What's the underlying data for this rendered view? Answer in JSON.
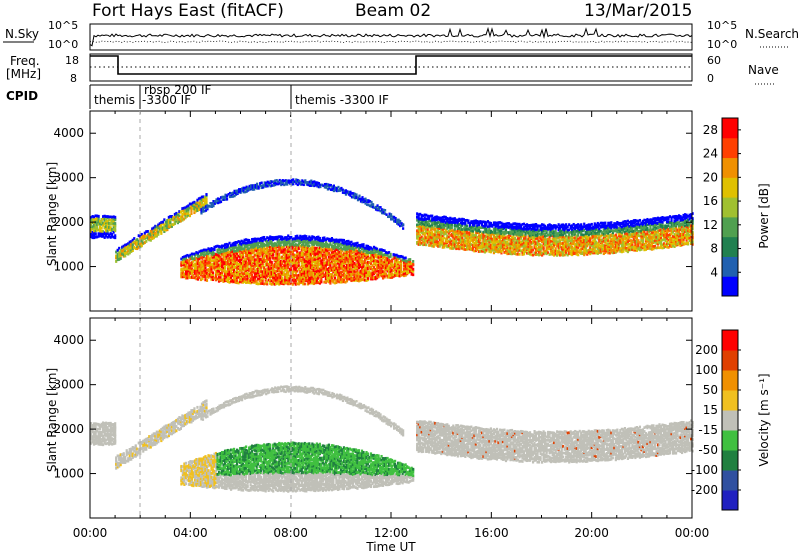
{
  "header": {
    "title": "Fort Hays East (fitACF)",
    "beam": "Beam 02",
    "date": "13/Mar/2015"
  },
  "labels": {
    "nsky": "N.Sky",
    "freq_line1": "Freq.",
    "freq_line2": "[MHz]",
    "cpid": "CPID",
    "nsearch": "N.Search",
    "nave": "Nave",
    "slant_range": "Slant Range [km]",
    "time_axis": "Time UT",
    "power_label": "Power [dB]",
    "velocity_label": "Velocity [m s⁻¹]"
  },
  "noise_panel": {
    "left_ticks": [
      "10^5",
      "10^0"
    ],
    "right_ticks": [
      "10^5",
      "10^0"
    ]
  },
  "freq_panel": {
    "left_ticks": [
      "18",
      "8"
    ],
    "right_ticks": [
      "60",
      "0"
    ]
  },
  "cpid_panel": {
    "segments": [
      {
        "start_hour": 0.0,
        "label": "themis"
      },
      {
        "start_hour": 1.9,
        "label": "rbsp 200 IF"
      },
      {
        "start_hour": 1.9,
        "label": "-3300 IF"
      },
      {
        "start_hour": 7.9,
        "label": "themis -3300 IF"
      }
    ]
  },
  "colors": {
    "power_scale": [
      "#0000ff",
      "#2060b0",
      "#208050",
      "#50a050",
      "#a0c030",
      "#e0c000",
      "#f09000",
      "#ff4000",
      "#ff0000"
    ],
    "velocity_scale": [
      "#2020c0",
      "#3050a0",
      "#208040",
      "#40c040",
      "#c0c0b8",
      "#f0c020",
      "#f09000",
      "#e04000",
      "#ff0000"
    ],
    "ground_scatter": "#c0c0b8"
  },
  "chart_data": [
    {
      "type": "heatmap",
      "name": "power",
      "x_range_hours": [
        0,
        24
      ],
      "ylim": [
        0,
        4500
      ],
      "y_ticks": [
        "1000",
        "2000",
        "3000",
        "4000"
      ],
      "x_ticks": [
        "00:00",
        "04:00",
        "08:00",
        "12:00",
        "16:00",
        "20:00",
        "00:00"
      ],
      "colorbar_ticks": [
        "4",
        "8",
        "12",
        "16",
        "20",
        "24",
        "28"
      ],
      "colorbar_range": [
        0,
        30
      ]
    },
    {
      "type": "heatmap",
      "name": "velocity",
      "x_range_hours": [
        0,
        24
      ],
      "ylim": [
        0,
        4500
      ],
      "y_ticks": [
        "1000",
        "2000",
        "3000",
        "4000"
      ],
      "x_ticks": [
        "00:00",
        "04:00",
        "08:00",
        "12:00",
        "16:00",
        "20:00",
        "00:00"
      ],
      "colorbar_ticks": [
        "200",
        "100",
        "50",
        "15",
        "-15",
        "-50",
        "-100",
        "-200"
      ]
    }
  ]
}
